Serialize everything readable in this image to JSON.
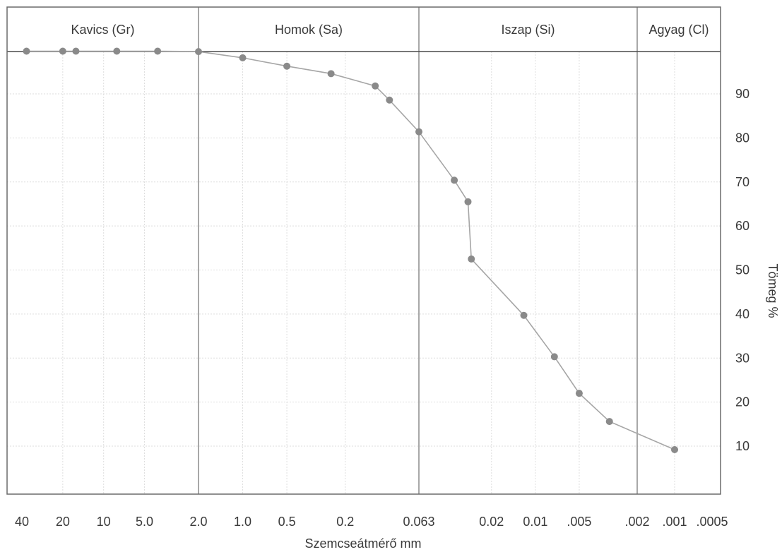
{
  "chart_data": {
    "type": "line",
    "xlabel": "Szemcseátmérő mm",
    "ylabel": "Tömeg %",
    "x_scale": "log",
    "x_direction": "decreasing",
    "xlim": [
      40,
      0.0005
    ],
    "ylim": [
      0,
      100
    ],
    "grid": true,
    "zones": [
      {
        "label": "Kavics (Gr)",
        "from": 40,
        "to": 2.0
      },
      {
        "label": "Homok (Sa)",
        "from": 2.0,
        "to": 0.063
      },
      {
        "label": "Iszap (Si)",
        "from": 0.063,
        "to": 0.002
      },
      {
        "label": "Agyag (Cl)",
        "from": 0.002,
        "to": 0.0005
      }
    ],
    "x_ticks": [
      {
        "value": 40,
        "label": "40"
      },
      {
        "value": 20,
        "label": "20"
      },
      {
        "value": 10,
        "label": "10"
      },
      {
        "value": 5.0,
        "label": "5.0"
      },
      {
        "value": 2.0,
        "label": "2.0"
      },
      {
        "value": 1.0,
        "label": "1.0"
      },
      {
        "value": 0.5,
        "label": "0.5"
      },
      {
        "value": 0.2,
        "label": "0.2"
      },
      {
        "value": 0.063,
        "label": "0.063"
      },
      {
        "value": 0.02,
        "label": "0.02"
      },
      {
        "value": 0.01,
        "label": "0.01"
      },
      {
        "value": 0.005,
        "label": ".005"
      },
      {
        "value": 0.002,
        "label": ".002"
      },
      {
        "value": 0.001,
        "label": ".001"
      },
      {
        "value": 0.0005,
        "label": ".0005"
      }
    ],
    "y_ticks": [
      10,
      20,
      30,
      40,
      50,
      60,
      70,
      80,
      90
    ],
    "series": [
      {
        "color": "#a6a6a6",
        "marker_color": "#8a8a8a",
        "points": [
          {
            "x": 37,
            "y": 99.7
          },
          {
            "x": 20,
            "y": 99.7
          },
          {
            "x": 16,
            "y": 99.7
          },
          {
            "x": 8,
            "y": 99.7
          },
          {
            "x": 4,
            "y": 99.7
          },
          {
            "x": 2.0,
            "y": 99.6
          },
          {
            "x": 1.0,
            "y": 98.2
          },
          {
            "x": 0.5,
            "y": 96.3
          },
          {
            "x": 0.25,
            "y": 94.6
          },
          {
            "x": 0.125,
            "y": 91.8
          },
          {
            "x": 0.1,
            "y": 88.6
          },
          {
            "x": 0.063,
            "y": 81.4
          },
          {
            "x": 0.036,
            "y": 70.4
          },
          {
            "x": 0.029,
            "y": 65.5
          },
          {
            "x": 0.0275,
            "y": 52.5
          },
          {
            "x": 0.012,
            "y": 39.7
          },
          {
            "x": 0.0074,
            "y": 30.3
          },
          {
            "x": 0.005,
            "y": 22.0
          },
          {
            "x": 0.0031,
            "y": 15.6
          },
          {
            "x": 0.001,
            "y": 9.2
          }
        ]
      }
    ]
  }
}
